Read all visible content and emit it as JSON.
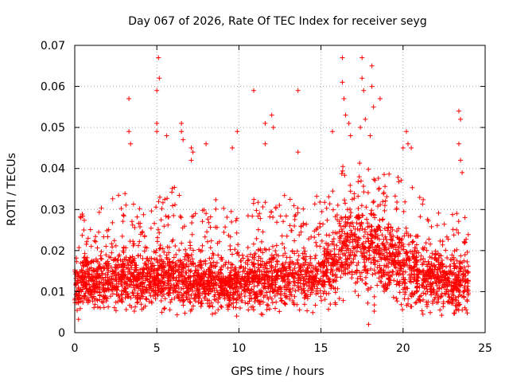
{
  "chart_data": {
    "type": "scatter",
    "title": "Day 067 of 2026, Rate Of TEC Index for receiver seyg",
    "xlabel": "GPS time / hours",
    "ylabel": "ROTI / TECUs",
    "xlim": [
      0,
      25
    ],
    "ylim": [
      0,
      0.07
    ],
    "xticks": [
      "0",
      "5",
      "10",
      "15",
      "20",
      "25"
    ],
    "yticks": [
      "0",
      "0.01",
      "0.02",
      "0.03",
      "0.04",
      "0.05",
      "0.06",
      "0.07"
    ],
    "grid": true,
    "marker": "+",
    "series_color": "#ff0000",
    "envelope": {
      "x_hours": [
        0,
        1,
        2,
        3,
        4,
        5,
        6,
        7,
        8,
        9,
        10,
        11,
        12,
        13,
        14,
        15,
        16,
        17,
        18,
        19,
        20,
        21,
        22,
        23,
        24
      ],
      "typical_roti": [
        0.011,
        0.012,
        0.012,
        0.013,
        0.013,
        0.013,
        0.013,
        0.012,
        0.012,
        0.012,
        0.012,
        0.013,
        0.013,
        0.013,
        0.013,
        0.013,
        0.019,
        0.021,
        0.02,
        0.018,
        0.016,
        0.014,
        0.013,
        0.012,
        0.012
      ],
      "upper_roti": [
        0.03,
        0.028,
        0.032,
        0.035,
        0.032,
        0.033,
        0.036,
        0.032,
        0.03,
        0.035,
        0.034,
        0.036,
        0.035,
        0.033,
        0.032,
        0.035,
        0.04,
        0.043,
        0.04,
        0.04,
        0.038,
        0.034,
        0.03,
        0.03,
        0.028
      ],
      "lower_roti": [
        0.003,
        0.004,
        0.003,
        0.004,
        0.004,
        0.004,
        0.004,
        0.004,
        0.004,
        0.004,
        0.004,
        0.004,
        0.004,
        0.004,
        0.004,
        0.004,
        0.006,
        0.006,
        0.005,
        0.005,
        0.004,
        0.004,
        0.003,
        0.002,
        0.002
      ]
    },
    "outliers": [
      {
        "x": 3.3,
        "y": 0.057
      },
      {
        "x": 3.3,
        "y": 0.049
      },
      {
        "x": 3.4,
        "y": 0.046
      },
      {
        "x": 5.1,
        "y": 0.067
      },
      {
        "x": 5.15,
        "y": 0.062
      },
      {
        "x": 5.0,
        "y": 0.059
      },
      {
        "x": 5.0,
        "y": 0.051
      },
      {
        "x": 5.0,
        "y": 0.049
      },
      {
        "x": 5.6,
        "y": 0.048
      },
      {
        "x": 6.5,
        "y": 0.051
      },
      {
        "x": 6.5,
        "y": 0.049
      },
      {
        "x": 6.6,
        "y": 0.047
      },
      {
        "x": 7.1,
        "y": 0.045
      },
      {
        "x": 7.2,
        "y": 0.044
      },
      {
        "x": 7.1,
        "y": 0.042
      },
      {
        "x": 8.0,
        "y": 0.046
      },
      {
        "x": 9.6,
        "y": 0.045
      },
      {
        "x": 9.9,
        "y": 0.049
      },
      {
        "x": 10.9,
        "y": 0.059
      },
      {
        "x": 11.6,
        "y": 0.051
      },
      {
        "x": 11.6,
        "y": 0.046
      },
      {
        "x": 12.0,
        "y": 0.053
      },
      {
        "x": 12.1,
        "y": 0.05
      },
      {
        "x": 13.6,
        "y": 0.059
      },
      {
        "x": 13.6,
        "y": 0.044
      },
      {
        "x": 15.7,
        "y": 0.049
      },
      {
        "x": 16.3,
        "y": 0.067
      },
      {
        "x": 16.3,
        "y": 0.061
      },
      {
        "x": 16.4,
        "y": 0.057
      },
      {
        "x": 16.5,
        "y": 0.053
      },
      {
        "x": 16.7,
        "y": 0.051
      },
      {
        "x": 16.8,
        "y": 0.048
      },
      {
        "x": 17.5,
        "y": 0.067
      },
      {
        "x": 17.5,
        "y": 0.062
      },
      {
        "x": 17.6,
        "y": 0.059
      },
      {
        "x": 17.7,
        "y": 0.052
      },
      {
        "x": 17.4,
        "y": 0.05
      },
      {
        "x": 18.1,
        "y": 0.065
      },
      {
        "x": 18.1,
        "y": 0.06
      },
      {
        "x": 18.2,
        "y": 0.055
      },
      {
        "x": 18.6,
        "y": 0.057
      },
      {
        "x": 18.0,
        "y": 0.048
      },
      {
        "x": 20.2,
        "y": 0.049
      },
      {
        "x": 20.3,
        "y": 0.046
      },
      {
        "x": 20.0,
        "y": 0.045
      },
      {
        "x": 20.5,
        "y": 0.045
      },
      {
        "x": 23.4,
        "y": 0.054
      },
      {
        "x": 23.5,
        "y": 0.052
      },
      {
        "x": 23.4,
        "y": 0.046
      },
      {
        "x": 23.5,
        "y": 0.042
      },
      {
        "x": 23.6,
        "y": 0.039
      },
      {
        "x": 17.9,
        "y": 0.002
      }
    ]
  }
}
